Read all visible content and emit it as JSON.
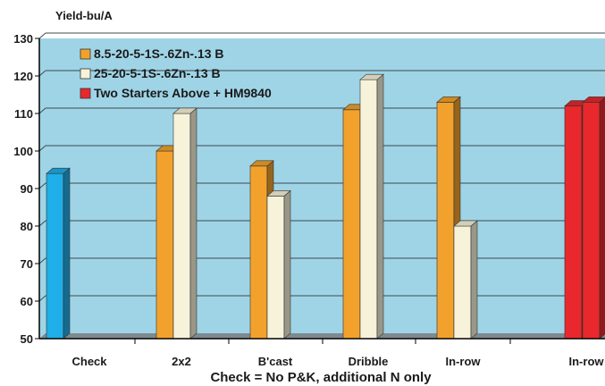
{
  "chart_data": {
    "type": "bar",
    "ylabel": "Yield-bu/A",
    "xlabel": "Check = No P&K, additional N only",
    "ylim": [
      50,
      130
    ],
    "yticks": [
      50,
      60,
      70,
      80,
      90,
      100,
      110,
      120,
      130
    ],
    "grid": true,
    "legend_position": "top-left",
    "categories": [
      "Check",
      "2x2",
      "B'cast",
      "Dribble",
      "In-row",
      "In-row"
    ],
    "series": [
      {
        "name": "",
        "color": "#1eaee8",
        "values": [
          94,
          null,
          null,
          null,
          null,
          null
        ]
      },
      {
        "name": "8.5-20-5-1S-.6Zn-.13 B",
        "color": "#f2a22c",
        "values": [
          null,
          100,
          96,
          111,
          113,
          null
        ]
      },
      {
        "name": "25-20-5-1S-.6Zn-.13 B",
        "color": "#f7f3da",
        "values": [
          null,
          110,
          88,
          119,
          80,
          null
        ]
      },
      {
        "name": "Two Starters Above + HM9840",
        "color": "#e8282c",
        "values": [
          null,
          null,
          null,
          null,
          null,
          112
        ]
      },
      {
        "name": "",
        "color": "#e8282c",
        "values": [
          null,
          null,
          null,
          null,
          null,
          113
        ]
      }
    ]
  }
}
